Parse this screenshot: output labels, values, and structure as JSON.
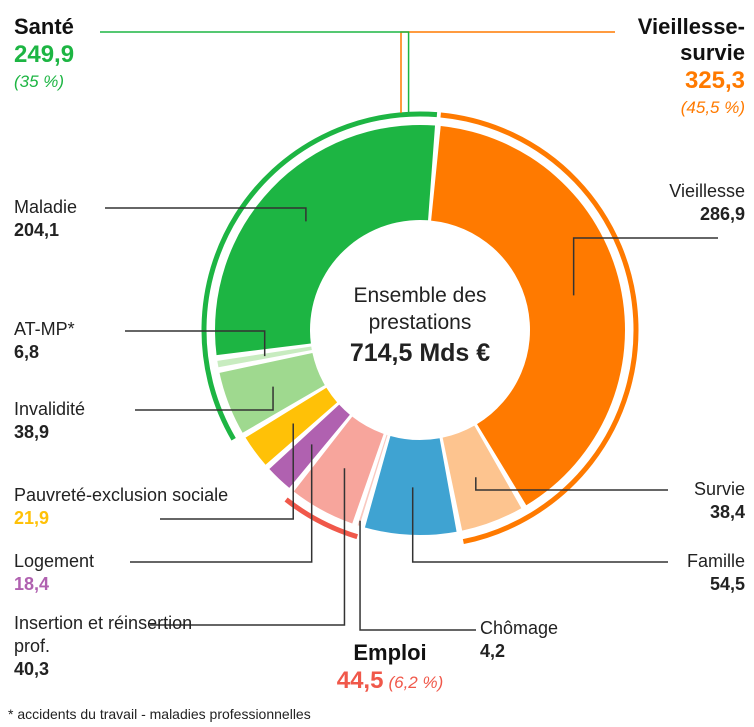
{
  "chart_data": {
    "type": "donut",
    "center_label": "Ensemble des prestations",
    "total": {
      "value": 714.5,
      "label": "714,5 Mds €"
    },
    "categories": [
      "Vieillesse",
      "Survie",
      "Famille",
      "Chômage",
      "Insertion et réinsertion prof.",
      "Logement",
      "Pauvreté-exclusion sociale",
      "Invalidité",
      "AT-MP*",
      "Maladie"
    ],
    "values": [
      286.9,
      38.4,
      54.5,
      4.2,
      40.3,
      18.4,
      21.9,
      38.9,
      6.8,
      204.1
    ],
    "value_labels": [
      "286,9",
      "38,4",
      "54,5",
      "4,2",
      "40,3",
      "18,4",
      "21,9",
      "38,9",
      "6,8",
      "204,1"
    ],
    "colors": [
      "#ff7a00",
      "#fdc48f",
      "#3fa3d2",
      "#f9c9c0",
      "#f7a59c",
      "#b061b0",
      "#ffc107",
      "#9fd98f",
      "#c8ecc0",
      "#1db543"
    ],
    "groups": [
      {
        "name": "Vieillesse-survie",
        "value": 325.3,
        "value_label": "325,3",
        "share": 45.5,
        "share_label": "(45,5 %)",
        "color": "#ff7a00"
      },
      {
        "name": "Emploi",
        "value": 44.5,
        "value_label": "44,5",
        "share": 6.2,
        "share_label": "(6,2 %)",
        "color": "#f0584a"
      },
      {
        "name": "Santé",
        "value": 249.9,
        "value_label": "249,9",
        "share": 35,
        "share_label": "(35 %)",
        "color": "#1db543"
      }
    ],
    "footnote": "* accidents du travail - maladies professionnelles"
  }
}
